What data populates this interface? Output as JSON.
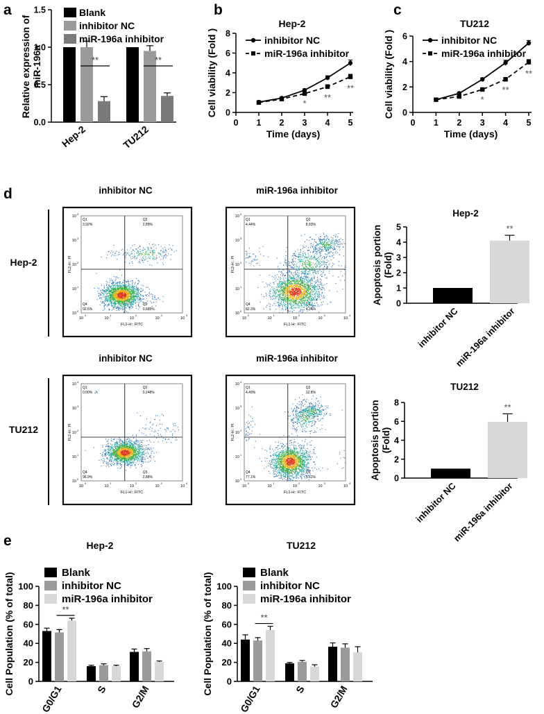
{
  "panels": {
    "a": "a",
    "b": "b",
    "c": "c",
    "d": "d",
    "e": "e"
  },
  "colors": {
    "black": "#000000",
    "gray": "#9a9a9a",
    "light": "#d8d8d8",
    "dark_gray": "#7a7a7a",
    "facs_bg": "#ffffff"
  },
  "chart_data": [
    {
      "id": "a",
      "type": "bar",
      "ylabel": "Relative expression of miR-196a",
      "ylabel_lines": [
        "Relative expression of",
        "miR-196a"
      ],
      "categories": [
        "Hep-2",
        "TU212"
      ],
      "ylim": [
        0,
        1.5
      ],
      "yticks": [
        "0.0",
        "0.5",
        "1.0",
        "1.5"
      ],
      "legend": [
        "Blank",
        "inhibitor NC",
        "miR-196a inhibitor"
      ],
      "series": [
        {
          "name": "Blank",
          "values": [
            1.0,
            1.0
          ],
          "errors": [
            0,
            0
          ]
        },
        {
          "name": "inhibitor NC",
          "values": [
            1.0,
            0.95
          ],
          "errors": [
            0.08,
            0.07
          ]
        },
        {
          "name": "miR-196a inhibitor",
          "values": [
            0.28,
            0.35
          ],
          "errors": [
            0.06,
            0.04
          ]
        }
      ],
      "significance": [
        "**",
        "**"
      ]
    },
    {
      "id": "b",
      "type": "line",
      "title": "Hep-2",
      "xlabel": "Time (days)",
      "ylabel": "Cell viability (Fold )",
      "x": [
        1,
        2,
        3,
        4,
        5
      ],
      "xticks": [
        "0",
        "1",
        "2",
        "3",
        "4",
        "5"
      ],
      "ylim": [
        0,
        8
      ],
      "yticks": [
        "0",
        "2",
        "4",
        "6",
        "8"
      ],
      "series": [
        {
          "name": "inhibitor NC",
          "values": [
            1.05,
            1.45,
            2.25,
            3.5,
            5.0
          ],
          "errors": [
            0.08,
            0.1,
            0.12,
            0.2,
            0.3
          ]
        },
        {
          "name": "miR-196a inhibitor",
          "values": [
            1.0,
            1.35,
            1.9,
            2.6,
            3.6
          ],
          "errors": [
            0.08,
            0.1,
            0.12,
            0.2,
            0.25
          ]
        }
      ],
      "annotations": [
        {
          "x": 3,
          "text": "*"
        },
        {
          "x": 4,
          "text": "**"
        },
        {
          "x": 5,
          "text": "**"
        }
      ]
    },
    {
      "id": "c",
      "type": "line",
      "title": "TU212",
      "xlabel": "Time (days)",
      "ylabel": "Cell viability (Fold )",
      "x": [
        1,
        2,
        3,
        4,
        5
      ],
      "xticks": [
        "0",
        "1",
        "2",
        "3",
        "4",
        "5"
      ],
      "ylim": [
        0,
        6
      ],
      "yticks": [
        "0",
        "2",
        "4",
        "6"
      ],
      "series": [
        {
          "name": "inhibitor NC",
          "values": [
            1.0,
            1.5,
            2.6,
            3.9,
            5.45
          ],
          "errors": [
            0.05,
            0.1,
            0.12,
            0.2,
            0.2
          ]
        },
        {
          "name": "miR-196a inhibitor",
          "values": [
            1.0,
            1.25,
            1.8,
            2.6,
            3.95
          ],
          "errors": [
            0.05,
            0.1,
            0.1,
            0.15,
            0.2
          ]
        }
      ],
      "annotations": [
        {
          "x": 3,
          "text": "*"
        },
        {
          "x": 4,
          "text": "**"
        },
        {
          "x": 5,
          "text": "**"
        }
      ]
    },
    {
      "id": "d_hep2",
      "type": "bar",
      "title": "Hep-2",
      "ylabel_lines": [
        "Apoptosis portion",
        "(Fold)"
      ],
      "categories": [
        "inhibitor NC",
        "miR-196a inhibitor"
      ],
      "values": [
        1.0,
        4.1
      ],
      "errors": [
        0,
        0.35
      ],
      "ylim": [
        0,
        5
      ],
      "yticks": [
        "0",
        "1",
        "2",
        "3",
        "4",
        "5"
      ],
      "significance": "**"
    },
    {
      "id": "d_tu212",
      "type": "bar",
      "title": "TU212",
      "ylabel_lines": [
        "Apoptosis portion",
        "(Fold)"
      ],
      "categories": [
        "inhibitor NC",
        "miR-196a inhibitor"
      ],
      "values": [
        1.0,
        5.95
      ],
      "errors": [
        0,
        0.85
      ],
      "ylim": [
        0,
        8
      ],
      "yticks": [
        "0",
        "2",
        "4",
        "6",
        "8"
      ],
      "significance": "**"
    },
    {
      "id": "e_hep2",
      "type": "bar",
      "title": "Hep-2",
      "ylabel": "Cell Population (% of total)",
      "categories": [
        "G0/G1",
        "S",
        "G2/M"
      ],
      "ylim": [
        0,
        100
      ],
      "yticks": [
        "0",
        "20",
        "40",
        "60",
        "80",
        "100"
      ],
      "legend": [
        "Blank",
        "inhibitor NC",
        "miR-196a inhibitor"
      ],
      "series": [
        {
          "name": "Blank",
          "values": [
            53,
            16,
            31
          ],
          "errors": [
            3,
            1,
            3
          ]
        },
        {
          "name": "inhibitor NC",
          "values": [
            51.5,
            17,
            31.5
          ],
          "errors": [
            3,
            1.5,
            3
          ]
        },
        {
          "name": "miR-196a inhibitor",
          "values": [
            64,
            16,
            20.5
          ],
          "errors": [
            2.5,
            1,
            1
          ]
        }
      ],
      "significance": "**"
    },
    {
      "id": "e_tu212",
      "type": "bar",
      "title": "TU212",
      "ylabel": "Cell Population (% of total)",
      "categories": [
        "G0/G1",
        "S",
        "G2/M"
      ],
      "ylim": [
        0,
        100
      ],
      "yticks": [
        "0",
        "20",
        "40",
        "60",
        "80",
        "100"
      ],
      "legend": [
        "Blank",
        "inhibitor NC",
        "miR-196a inhibitor"
      ],
      "series": [
        {
          "name": "Blank",
          "values": [
            44,
            19,
            36.5
          ],
          "errors": [
            5,
            1,
            4
          ]
        },
        {
          "name": "inhibitor NC",
          "values": [
            43,
            20.5,
            35.5
          ],
          "errors": [
            3,
            1.5,
            4
          ]
        },
        {
          "name": "miR-196a inhibitor",
          "values": [
            54,
            15.5,
            30.5
          ],
          "errors": [
            4,
            2,
            6
          ]
        }
      ],
      "significance": "**"
    }
  ],
  "facs": {
    "col_headers": [
      "inhibitor NC",
      "miR-196a inhibitor"
    ],
    "row_labels": [
      "Hep-2",
      "TU212"
    ],
    "x_axis_label": "FL1-H:: FITC",
    "y_axis_label": "FL2-H:: PI",
    "tick_labels": [
      "10",
      "0",
      "1",
      "2",
      "3",
      "4"
    ],
    "plots": [
      {
        "q1": "Q1",
        "q1_val": "3.92%",
        "q2": "Q2",
        "q2_val": "2.89%",
        "q3": "Q3",
        "q3_val": "0.685%",
        "q4": "Q4",
        "q4_val": "92.5%"
      },
      {
        "q1": "Q1",
        "q1_val": "4.44%",
        "q2": "Q2",
        "q2_val": "8.93%",
        "q3": "Q3",
        "q3_val": "4.34%",
        "q4": "Q4",
        "q4_val": "82.3%"
      },
      {
        "q1": "Q1",
        "q1_val": "0.00%",
        "q2": "Q2",
        "q2_val": "0.248%",
        "q3": "Q3",
        "q3_val": "2.88%",
        "q4": "Q4",
        "q4_val": "96.9%"
      },
      {
        "q1": "Q1",
        "q1_val": "4.49%",
        "q2": "Q2",
        "q2_val": "12.8%",
        "q3": "Q3",
        "q3_val": "5.62%",
        "q4": "Q4",
        "q4_val": "77.1%"
      }
    ]
  }
}
